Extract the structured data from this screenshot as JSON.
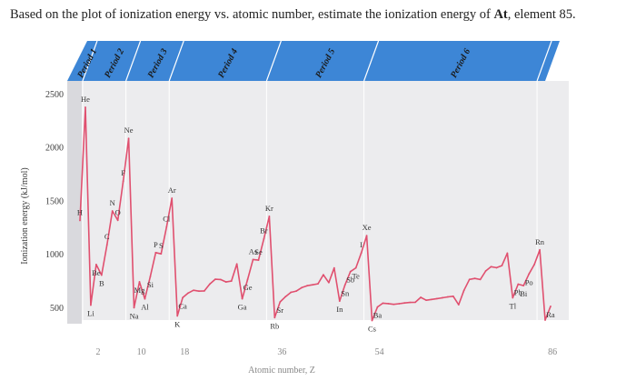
{
  "question": {
    "before": "Based on the plot of ionization energy vs. atomic number, estimate the ionization energy of ",
    "element": "At",
    "after": ", element 85."
  },
  "colors": {
    "plot_background": "#ececee",
    "band_blue": "#3d86d6",
    "line_pink": "#e0506f",
    "text": "#3a3a3a"
  },
  "chart_data": {
    "type": "line",
    "xlabel": "Atomic number, Z",
    "ylabel": "Ionization energy (kJ/mol)",
    "xlim": [
      1,
      88
    ],
    "ylim": [
      380,
      2500
    ],
    "y_ticks": [
      2500,
      2000,
      1500,
      1000,
      500
    ],
    "x_ticks": [
      2,
      10,
      18,
      36,
      54,
      86
    ],
    "periods": [
      {
        "label": "Period 1",
        "start": 1,
        "end": 2
      },
      {
        "label": "Period 2",
        "start": 3,
        "end": 10
      },
      {
        "label": "Period 3",
        "start": 11,
        "end": 18
      },
      {
        "label": "Period 4",
        "start": 19,
        "end": 36
      },
      {
        "label": "Period 5",
        "start": 37,
        "end": 54
      },
      {
        "label": "Period 6",
        "start": 55,
        "end": 86
      }
    ],
    "series": [
      {
        "x": [
          1,
          2,
          3,
          4,
          5,
          6,
          7,
          8,
          9,
          10,
          11,
          12,
          13,
          14,
          15,
          16,
          17,
          18,
          19,
          20,
          21,
          22,
          23,
          24,
          25,
          26,
          27,
          28,
          29,
          30,
          31,
          32,
          33,
          34,
          35,
          36,
          37,
          38,
          39,
          40,
          41,
          42,
          43,
          44,
          45,
          46,
          47,
          48,
          49,
          50,
          51,
          52,
          53,
          54,
          55,
          56,
          57,
          58,
          59,
          60,
          61,
          62,
          63,
          64,
          65,
          66,
          67,
          68,
          69,
          70,
          71,
          72,
          73,
          74,
          75,
          76,
          77,
          78,
          79,
          80,
          81,
          82,
          83,
          84,
          85,
          86,
          87,
          88
        ],
        "y": [
          1312,
          2372,
          520,
          900,
          801,
          1086,
          1402,
          1314,
          1681,
          2081,
          496,
          738,
          578,
          787,
          1012,
          1000,
          1251,
          1521,
          419,
          590,
          633,
          659,
          651,
          653,
          717,
          762,
          760,
          737,
          745,
          906,
          579,
          762,
          947,
          941,
          1140,
          1351,
          403,
          550,
          600,
          640,
          652,
          684,
          702,
          710,
          720,
          804,
          731,
          868,
          558,
          709,
          834,
          869,
          1008,
          1170,
          376,
          503,
          538,
          534,
          527,
          533,
          540,
          545,
          547,
          593,
          566,
          573,
          581,
          589,
          597,
          603,
          524,
          659,
          761,
          770,
          760,
          840,
          880,
          870,
          890,
          1007,
          589,
          716,
          703,
          812,
          900,
          1037,
          380,
          509
        ]
      }
    ],
    "element_labels": [
      {
        "text": "H",
        "x": 1,
        "y": 1312
      },
      {
        "text": "He",
        "x": 2,
        "y": 2372
      },
      {
        "text": "Li",
        "x": 3,
        "y": 520
      },
      {
        "text": "Be",
        "x": 4,
        "y": 900
      },
      {
        "text": "B",
        "x": 5,
        "y": 801
      },
      {
        "text": "C",
        "x": 6,
        "y": 1086
      },
      {
        "text": "N",
        "x": 7,
        "y": 1402
      },
      {
        "text": "O",
        "x": 8,
        "y": 1314
      },
      {
        "text": "F",
        "x": 9,
        "y": 1681
      },
      {
        "text": "Ne",
        "x": 10,
        "y": 2081
      },
      {
        "text": "Na",
        "x": 11,
        "y": 496
      },
      {
        "text": "Mg",
        "x": 12,
        "y": 738
      },
      {
        "text": "Al",
        "x": 13,
        "y": 578
      },
      {
        "text": "Si",
        "x": 14,
        "y": 787
      },
      {
        "text": "P",
        "x": 15,
        "y": 1012
      },
      {
        "text": "S",
        "x": 16,
        "y": 1000
      },
      {
        "text": "Cl",
        "x": 17,
        "y": 1251
      },
      {
        "text": "Ar",
        "x": 18,
        "y": 1521
      },
      {
        "text": "K",
        "x": 19,
        "y": 419
      },
      {
        "text": "Ca",
        "x": 20,
        "y": 590
      },
      {
        "text": "Ga",
        "x": 31,
        "y": 579
      },
      {
        "text": "Ge",
        "x": 32,
        "y": 762
      },
      {
        "text": "As",
        "x": 33,
        "y": 947
      },
      {
        "text": "Se",
        "x": 34,
        "y": 941
      },
      {
        "text": "Br",
        "x": 35,
        "y": 1140
      },
      {
        "text": "Kr",
        "x": 36,
        "y": 1351
      },
      {
        "text": "Rb",
        "x": 37,
        "y": 403
      },
      {
        "text": "Sr",
        "x": 38,
        "y": 550
      },
      {
        "text": "In",
        "x": 49,
        "y": 558
      },
      {
        "text": "Sn",
        "x": 50,
        "y": 709
      },
      {
        "text": "Sb",
        "x": 51,
        "y": 834
      },
      {
        "text": "Te",
        "x": 52,
        "y": 869
      },
      {
        "text": "I",
        "x": 53,
        "y": 1008
      },
      {
        "text": "Xe",
        "x": 54,
        "y": 1170
      },
      {
        "text": "Cs",
        "x": 55,
        "y": 376
      },
      {
        "text": "Ba",
        "x": 56,
        "y": 503
      },
      {
        "text": "Tl",
        "x": 81,
        "y": 589
      },
      {
        "text": "Pb",
        "x": 82,
        "y": 716
      },
      {
        "text": "Bi",
        "x": 83,
        "y": 703
      },
      {
        "text": "Po",
        "x": 84,
        "y": 812
      },
      {
        "text": "Rn",
        "x": 86,
        "y": 1037
      },
      {
        "text": "Ra",
        "x": 88,
        "y": 509
      }
    ]
  }
}
